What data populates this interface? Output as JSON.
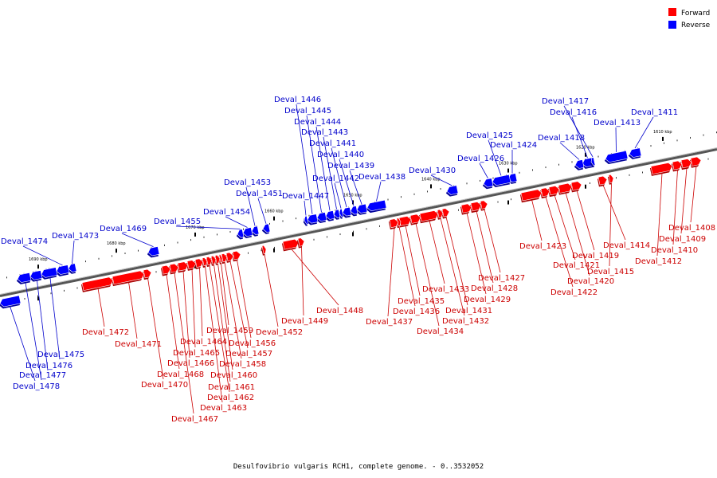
{
  "caption": "Desulfovibrio vulgaris RCH1, complete genome. - 0..3532052",
  "legend": {
    "items": [
      {
        "label": "Forward",
        "color": "#ff0000"
      },
      {
        "label": "Reverse",
        "color": "#0000ff"
      }
    ]
  },
  "colors": {
    "forward": "#ff0000",
    "forward_dark": "#aa0000",
    "reverse": "#0000ff",
    "reverse_dark": "#000099",
    "forward_label": "#cc0000",
    "reverse_label": "#0000cc",
    "axis": "#555555"
  },
  "axis": {
    "start_kbp": 1695,
    "end_kbp": 1605,
    "tick_labels": [
      "1690 kbp",
      "1680 kbp",
      "1670 kbp",
      "1660 kbp",
      "1650 kbp",
      "1640 kbp",
      "1630 kbp",
      "1620 kbp",
      "1610 kbp"
    ]
  },
  "genes": [
    {
      "name": "Deval_1408",
      "strand": "forward"
    },
    {
      "name": "Deval_1409",
      "strand": "forward"
    },
    {
      "name": "Deval_1410",
      "strand": "forward"
    },
    {
      "name": "Deval_1411",
      "strand": "reverse"
    },
    {
      "name": "Deval_1412",
      "strand": "forward"
    },
    {
      "name": "Deval_1413",
      "strand": "reverse"
    },
    {
      "name": "Deval_1414",
      "strand": "forward"
    },
    {
      "name": "Deval_1415",
      "strand": "forward"
    },
    {
      "name": "Deval_1416",
      "strand": "reverse"
    },
    {
      "name": "Deval_1417",
      "strand": "reverse"
    },
    {
      "name": "Deval_1418",
      "strand": "reverse"
    },
    {
      "name": "Deval_1419",
      "strand": "forward"
    },
    {
      "name": "Deval_1420",
      "strand": "forward"
    },
    {
      "name": "Deval_1421",
      "strand": "forward"
    },
    {
      "name": "Deval_1422",
      "strand": "forward"
    },
    {
      "name": "Deval_1423",
      "strand": "forward"
    },
    {
      "name": "Deval_1424",
      "strand": "reverse"
    },
    {
      "name": "Deval_1425",
      "strand": "reverse"
    },
    {
      "name": "Deval_1426",
      "strand": "reverse"
    },
    {
      "name": "Deval_1427",
      "strand": "forward"
    },
    {
      "name": "Deval_1428",
      "strand": "forward"
    },
    {
      "name": "Deval_1429",
      "strand": "forward"
    },
    {
      "name": "Deval_1430",
      "strand": "reverse"
    },
    {
      "name": "Deval_1431",
      "strand": "forward"
    },
    {
      "name": "Deval_1432",
      "strand": "forward"
    },
    {
      "name": "Deval_1433",
      "strand": "forward"
    },
    {
      "name": "Deval_1434",
      "strand": "forward"
    },
    {
      "name": "Deval_1435",
      "strand": "forward"
    },
    {
      "name": "Deval_1436",
      "strand": "forward"
    },
    {
      "name": "Deval_1437",
      "strand": "forward"
    },
    {
      "name": "Deval_1438",
      "strand": "reverse"
    },
    {
      "name": "Deval_1439",
      "strand": "reverse"
    },
    {
      "name": "Deval_1440",
      "strand": "reverse"
    },
    {
      "name": "Deval_1441",
      "strand": "reverse"
    },
    {
      "name": "Deval_1442",
      "strand": "reverse"
    },
    {
      "name": "Deval_1443",
      "strand": "reverse"
    },
    {
      "name": "Deval_1444",
      "strand": "reverse"
    },
    {
      "name": "Deval_1445",
      "strand": "reverse"
    },
    {
      "name": "Deval_1446",
      "strand": "reverse"
    },
    {
      "name": "Deval_1447",
      "strand": "reverse"
    },
    {
      "name": "Deval_1448",
      "strand": "forward"
    },
    {
      "name": "Deval_1449",
      "strand": "forward"
    },
    {
      "name": "Deval_1451",
      "strand": "reverse"
    },
    {
      "name": "Deval_1452",
      "strand": "forward"
    },
    {
      "name": "Deval_1453",
      "strand": "reverse"
    },
    {
      "name": "Deval_1454",
      "strand": "reverse"
    },
    {
      "name": "Deval_1455",
      "strand": "reverse"
    },
    {
      "name": "Deval_1456",
      "strand": "forward"
    },
    {
      "name": "Deval_1457",
      "strand": "forward"
    },
    {
      "name": "Deval_1458",
      "strand": "forward"
    },
    {
      "name": "Deval_1459",
      "strand": "forward"
    },
    {
      "name": "Deval_1460",
      "strand": "forward"
    },
    {
      "name": "Deval_1461",
      "strand": "forward"
    },
    {
      "name": "Deval_1462",
      "strand": "forward"
    },
    {
      "name": "Deval_1463",
      "strand": "forward"
    },
    {
      "name": "Deval_1464",
      "strand": "forward"
    },
    {
      "name": "Deval_1465",
      "strand": "forward"
    },
    {
      "name": "Deval_1466",
      "strand": "forward"
    },
    {
      "name": "Deval_1467",
      "strand": "forward"
    },
    {
      "name": "Deval_1468",
      "strand": "forward"
    },
    {
      "name": "Deval_1469",
      "strand": "reverse"
    },
    {
      "name": "Deval_1470",
      "strand": "forward"
    },
    {
      "name": "Deval_1471",
      "strand": "forward"
    },
    {
      "name": "Deval_1472",
      "strand": "forward"
    },
    {
      "name": "Deval_1473",
      "strand": "reverse"
    },
    {
      "name": "Deval_1474",
      "strand": "reverse"
    },
    {
      "name": "Deval_1475",
      "strand": "reverse"
    },
    {
      "name": "Deval_1476",
      "strand": "reverse"
    },
    {
      "name": "Deval_1477",
      "strand": "reverse"
    },
    {
      "name": "Deval_1478",
      "strand": "reverse"
    }
  ]
}
